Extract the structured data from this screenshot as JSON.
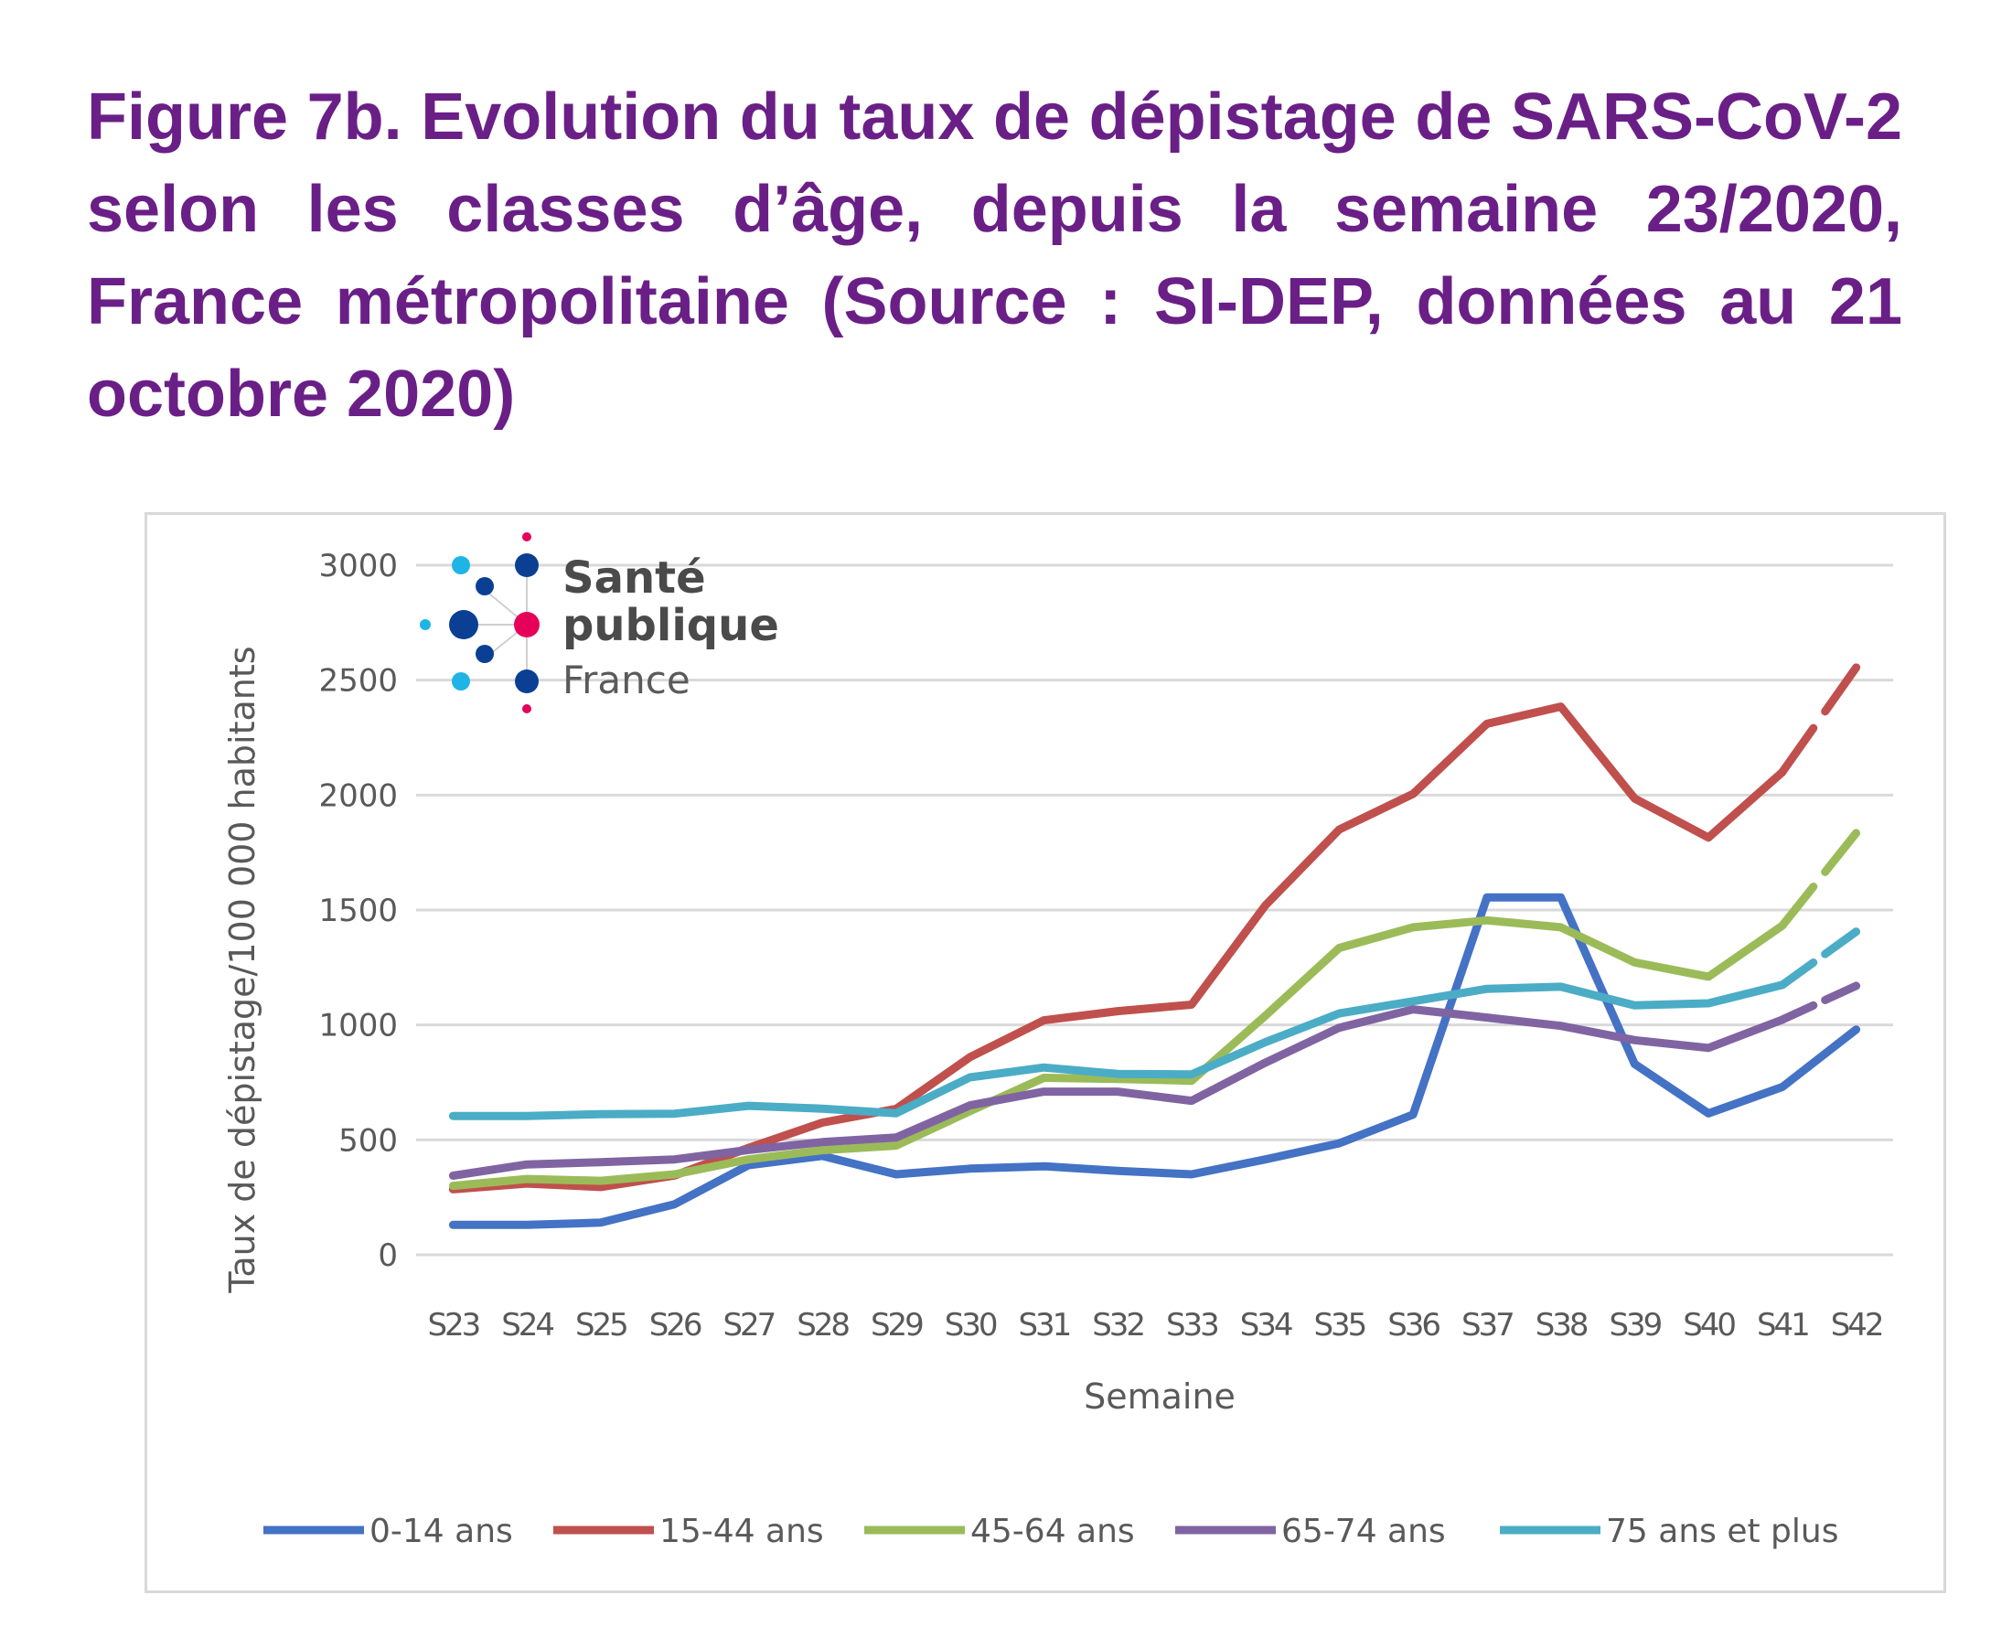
{
  "figure": {
    "title": "Figure 7b. Evolution du taux de dépistage de SARS-CoV-2 selon les classes d’âge, depuis la semaine 23/2020, France métropolitaine (Source : SI-DEP, données au 21 octobre 2020)",
    "title_color": "#6a1f87"
  },
  "logo": {
    "line1": "Santé",
    "line2": "publique",
    "line3": "France",
    "colors": {
      "dark_blue": "#0b3f94",
      "light_blue": "#1eb4e6",
      "pink": "#e5005a"
    }
  },
  "chart_data": {
    "type": "line",
    "title": "",
    "xlabel": "Semaine",
    "ylabel": "Taux de dépistage/100 000 habitants",
    "ylim": [
      0,
      3000
    ],
    "yticks": [
      0,
      500,
      1000,
      1500,
      2000,
      2500,
      3000
    ],
    "ytick_labels": [
      "0",
      "500",
      "1000",
      "1500",
      "2000",
      "2500",
      "3000"
    ],
    "grid": true,
    "legend_position": "bottom",
    "categories": [
      "S23",
      "S24",
      "S25",
      "S26",
      "S27",
      "S28",
      "S29",
      "S30",
      "S31",
      "S32",
      "S33",
      "S34",
      "S35",
      "S36",
      "S37",
      "S38",
      "S39",
      "S40",
      "S41",
      "S42"
    ],
    "series": [
      {
        "name": "0-14 ans",
        "color": "#4472c4",
        "last_segment_dashed": false,
        "values": [
          130,
          130,
          140,
          220,
          390,
          430,
          350,
          375,
          385,
          365,
          350,
          415,
          485,
          610,
          1555,
          1555,
          830,
          615,
          730,
          980
        ]
      },
      {
        "name": "15-44 ans",
        "color": "#c0504d",
        "last_segment_dashed": true,
        "values": [
          285,
          310,
          295,
          345,
          465,
          575,
          635,
          860,
          1020,
          1060,
          1088,
          1520,
          1850,
          2005,
          2310,
          2385,
          1985,
          1815,
          2100,
          2555
        ]
      },
      {
        "name": "45-64 ans",
        "color": "#9bbb59",
        "last_segment_dashed": true,
        "values": [
          300,
          330,
          322,
          350,
          415,
          455,
          475,
          625,
          770,
          765,
          757,
          1040,
          1335,
          1425,
          1455,
          1425,
          1272,
          1210,
          1432,
          1835
        ]
      },
      {
        "name": "65-74 ans",
        "color": "#8064a2",
        "last_segment_dashed": true,
        "values": [
          344,
          393,
          403,
          415,
          456,
          490,
          510,
          650,
          710,
          710,
          670,
          836,
          988,
          1068,
          1032,
          996,
          934,
          900,
          1023,
          1170
        ]
      },
      {
        "name": "75 ans et plus",
        "color": "#4bacc6",
        "last_segment_dashed": true,
        "values": [
          604,
          604,
          612,
          614,
          648,
          636,
          616,
          772,
          815,
          787,
          785,
          925,
          1050,
          1103,
          1157,
          1166,
          1085,
          1094,
          1174,
          1406
        ]
      }
    ]
  }
}
